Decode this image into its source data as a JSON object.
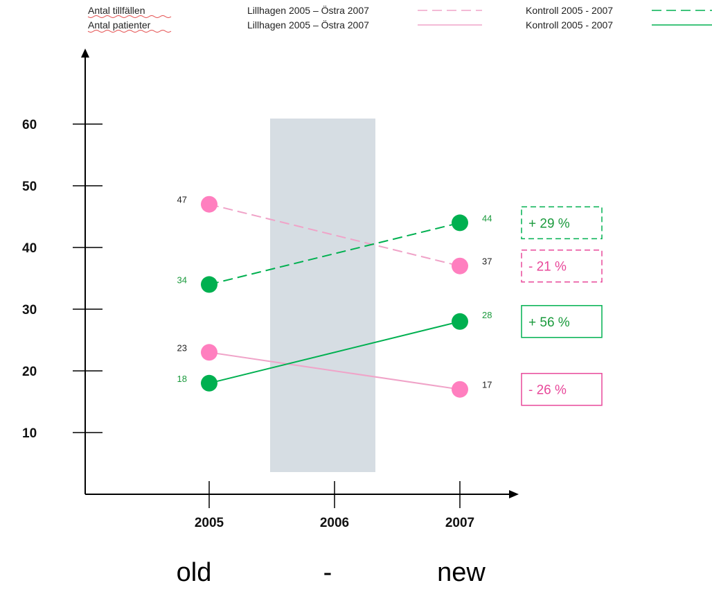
{
  "colors": {
    "pink": "#ff7fbf",
    "pink_line": "#f0a3c8",
    "pink_text": "#e8489a",
    "green": "#00b050",
    "green_text": "#1a9a3c",
    "band": "#d6dde3",
    "axis": "#000000"
  },
  "legend": [
    {
      "label": "Antal tillfällen",
      "series_a": "Lillhagen 2005 – Östra 2007",
      "series_b": "Kontroll 2005 - 2007",
      "style": "dashed"
    },
    {
      "label": "Antal patienter",
      "series_a": "Lillhagen 2005 – Östra 2007",
      "series_b": "Kontroll 2005 - 2007",
      "style": "solid"
    }
  ],
  "chart_data": {
    "type": "line",
    "x": [
      "2005",
      "2006",
      "2007"
    ],
    "y_ticks": [
      10,
      20,
      30,
      40,
      50,
      60
    ],
    "ylim": [
      0,
      66
    ],
    "highlight_band": "2006",
    "series": [
      {
        "name": "Antal tillfällen Lillhagen 2005 – Östra 2007",
        "color": "pink",
        "dash": true,
        "points": [
          [
            2005,
            47
          ],
          [
            2007,
            37
          ]
        ],
        "labels": [
          "47",
          "37"
        ],
        "change": "- 21 %"
      },
      {
        "name": "Antal tillfällen Kontroll 2005 - 2007",
        "color": "green",
        "dash": true,
        "points": [
          [
            2005,
            34
          ],
          [
            2007,
            44
          ]
        ],
        "labels": [
          "34",
          "44"
        ],
        "change": "+ 29 %"
      },
      {
        "name": "Antal patienter Lillhagen 2005 – Östra 2007",
        "color": "pink",
        "dash": false,
        "points": [
          [
            2005,
            23
          ],
          [
            2007,
            17
          ]
        ],
        "labels": [
          "23",
          "17"
        ],
        "change": "- 26 %"
      },
      {
        "name": "Antal patienter Kontroll 2005 - 2007",
        "color": "green",
        "dash": false,
        "points": [
          [
            2005,
            18
          ],
          [
            2007,
            28
          ]
        ],
        "labels": [
          "18",
          "28"
        ],
        "change": "+ 56 %"
      }
    ]
  },
  "caption": {
    "left": "old",
    "middle": "-",
    "right": "new"
  }
}
